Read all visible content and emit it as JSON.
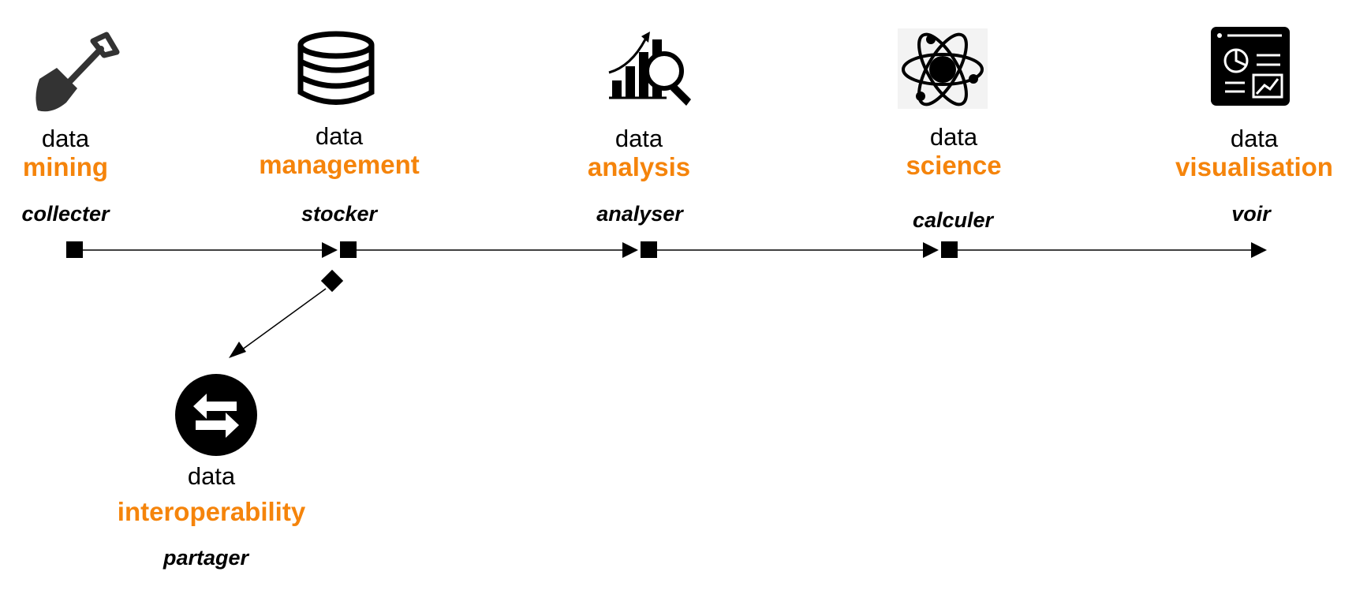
{
  "accent_color": "#f5840b",
  "stages": [
    {
      "word": "data",
      "term": "mining",
      "verb": "collecter",
      "icon": "shovel-icon"
    },
    {
      "word": "data",
      "term": "management",
      "verb": "stocker",
      "icon": "database-icon"
    },
    {
      "word": "data",
      "term": "analysis",
      "verb": "analyser",
      "icon": "chart-magnifier-icon"
    },
    {
      "word": "data",
      "term": "science",
      "verb": "calculer",
      "icon": "atom-icon"
    },
    {
      "word": "data",
      "term": "visualisation",
      "verb": "voir",
      "icon": "dashboard-icon"
    },
    {
      "word": "data",
      "term": "interoperability",
      "verb": "partager",
      "icon": "exchange-arrows-icon"
    }
  ]
}
